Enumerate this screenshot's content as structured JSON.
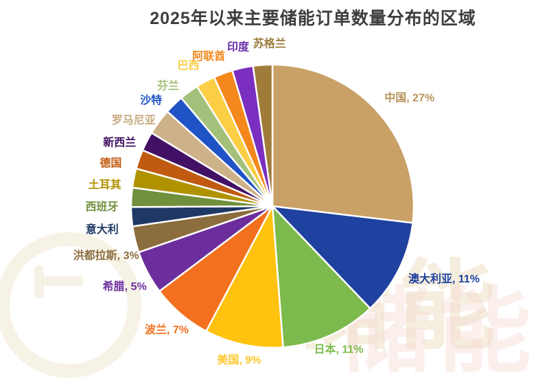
{
  "title": {
    "text": "2025年以来主要储能订单数量分布的区域"
  },
  "watermark": {
    "text": "储能",
    "text_secondary": "储能"
  },
  "chart_data": {
    "type": "pie",
    "title": "2025年以来主要储能订单数量分布的区域",
    "start_angle_deg": 0,
    "direction": "clockwise",
    "legend_position": "none",
    "label_style": "outside, bold, colored same as slice",
    "slices": [
      {
        "name": "中国",
        "value": 27,
        "label": "中国, 27%",
        "color": "#C9A066",
        "label_color": "#B7935A"
      },
      {
        "name": "澳大利亚",
        "value": 11,
        "label": "澳大利亚, 11%",
        "color": "#1F419F",
        "label_color": "#1F419F"
      },
      {
        "name": "日本",
        "value": 11,
        "label": "日本, 11%",
        "color": "#7DBA4D",
        "label_color": "#7DBA4D"
      },
      {
        "name": "美国",
        "value": 9,
        "label": "美国, 9%",
        "color": "#FFC20E",
        "label_color": "#FFC72B"
      },
      {
        "name": "波兰",
        "value": 7,
        "label": "波兰, 7%",
        "color": "#F3701E",
        "label_color": "#F3701E"
      },
      {
        "name": "希腊",
        "value": 5,
        "label": "希腊, 5%",
        "color": "#6C2E9C",
        "label_color": "#6C2E9C"
      },
      {
        "name": "洪都拉斯",
        "value": 3,
        "label": "洪都拉斯, 3%",
        "color": "#8C6D3E",
        "label_color": "#8C6D3E"
      },
      {
        "name": "意大利",
        "value": 2.2,
        "label": "意大利",
        "color": "#1F3864",
        "label_color": "#1F3864"
      },
      {
        "name": "西班牙",
        "value": 2.2,
        "label": "西班牙",
        "color": "#70903C",
        "label_color": "#70903C"
      },
      {
        "name": "土耳其",
        "value": 2.2,
        "label": "土耳其",
        "color": "#B09200",
        "label_color": "#B09200"
      },
      {
        "name": "德国",
        "value": 2.2,
        "label": "德国",
        "color": "#C05A11",
        "label_color": "#C05A11"
      },
      {
        "name": "新西兰",
        "value": 2.2,
        "label": "新西兰",
        "color": "#421064",
        "label_color": "#421064"
      },
      {
        "name": "罗马尼亚",
        "value": 3,
        "label": "罗马尼亚",
        "color": "#CDB189",
        "label_color": "#C7AB80"
      },
      {
        "name": "沙特",
        "value": 2.2,
        "label": "沙特",
        "color": "#2053C5",
        "label_color": "#2053C5"
      },
      {
        "name": "芬兰",
        "value": 2.2,
        "label": "芬兰",
        "color": "#A3C17B",
        "label_color": "#A3C17B"
      },
      {
        "name": "巴西",
        "value": 2.2,
        "label": "巴西",
        "color": "#FBCE45",
        "label_color": "#FBCE45"
      },
      {
        "name": "阿联酋",
        "value": 2.2,
        "label": "阿联酋",
        "color": "#F4881D",
        "label_color": "#F4881D"
      },
      {
        "name": "印度",
        "value": 2.4,
        "label": "印度",
        "color": "#7B2FC0",
        "label_color": "#6B2FA8"
      },
      {
        "name": "苏格兰",
        "value": 2.2,
        "label": "苏格兰",
        "color": "#A07C3B",
        "label_color": "#9A7B3D"
      }
    ]
  }
}
